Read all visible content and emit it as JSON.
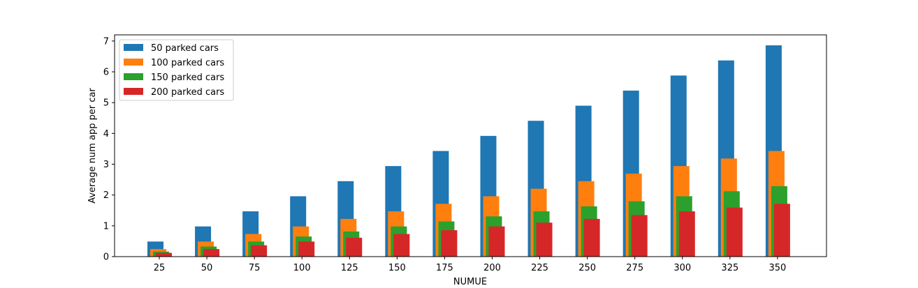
{
  "chart_data": {
    "type": "bar",
    "title": "",
    "xlabel": "NUMUE",
    "ylabel": "Average num app per car",
    "categories": [
      "25",
      "50",
      "75",
      "100",
      "125",
      "150",
      "175",
      "200",
      "225",
      "250",
      "275",
      "300",
      "325",
      "350"
    ],
    "ylim": [
      0,
      7.2
    ],
    "yticks": [
      0,
      1,
      2,
      3,
      4,
      5,
      6,
      7
    ],
    "grid": false,
    "legend_position": "top-left",
    "series": [
      {
        "name": "50 parked cars",
        "color": "#1f77b4",
        "values": [
          0.49,
          0.98,
          1.47,
          1.96,
          2.45,
          2.94,
          3.43,
          3.92,
          4.41,
          4.9,
          5.39,
          5.88,
          6.37,
          6.86
        ]
      },
      {
        "name": "100 parked cars",
        "color": "#ff7f0e",
        "values": [
          0.245,
          0.49,
          0.735,
          0.98,
          1.225,
          1.47,
          1.715,
          1.96,
          2.205,
          2.45,
          2.695,
          2.94,
          3.185,
          3.43
        ]
      },
      {
        "name": "150 parked cars",
        "color": "#2ca02c",
        "values": [
          0.163,
          0.327,
          0.49,
          0.653,
          0.817,
          0.98,
          1.143,
          1.307,
          1.47,
          1.633,
          1.797,
          1.96,
          2.123,
          2.287
        ]
      },
      {
        "name": "200 parked cars",
        "color": "#d62728",
        "values": [
          0.123,
          0.245,
          0.368,
          0.49,
          0.613,
          0.735,
          0.858,
          0.98,
          1.103,
          1.225,
          1.348,
          1.47,
          1.593,
          1.715
        ]
      }
    ]
  }
}
